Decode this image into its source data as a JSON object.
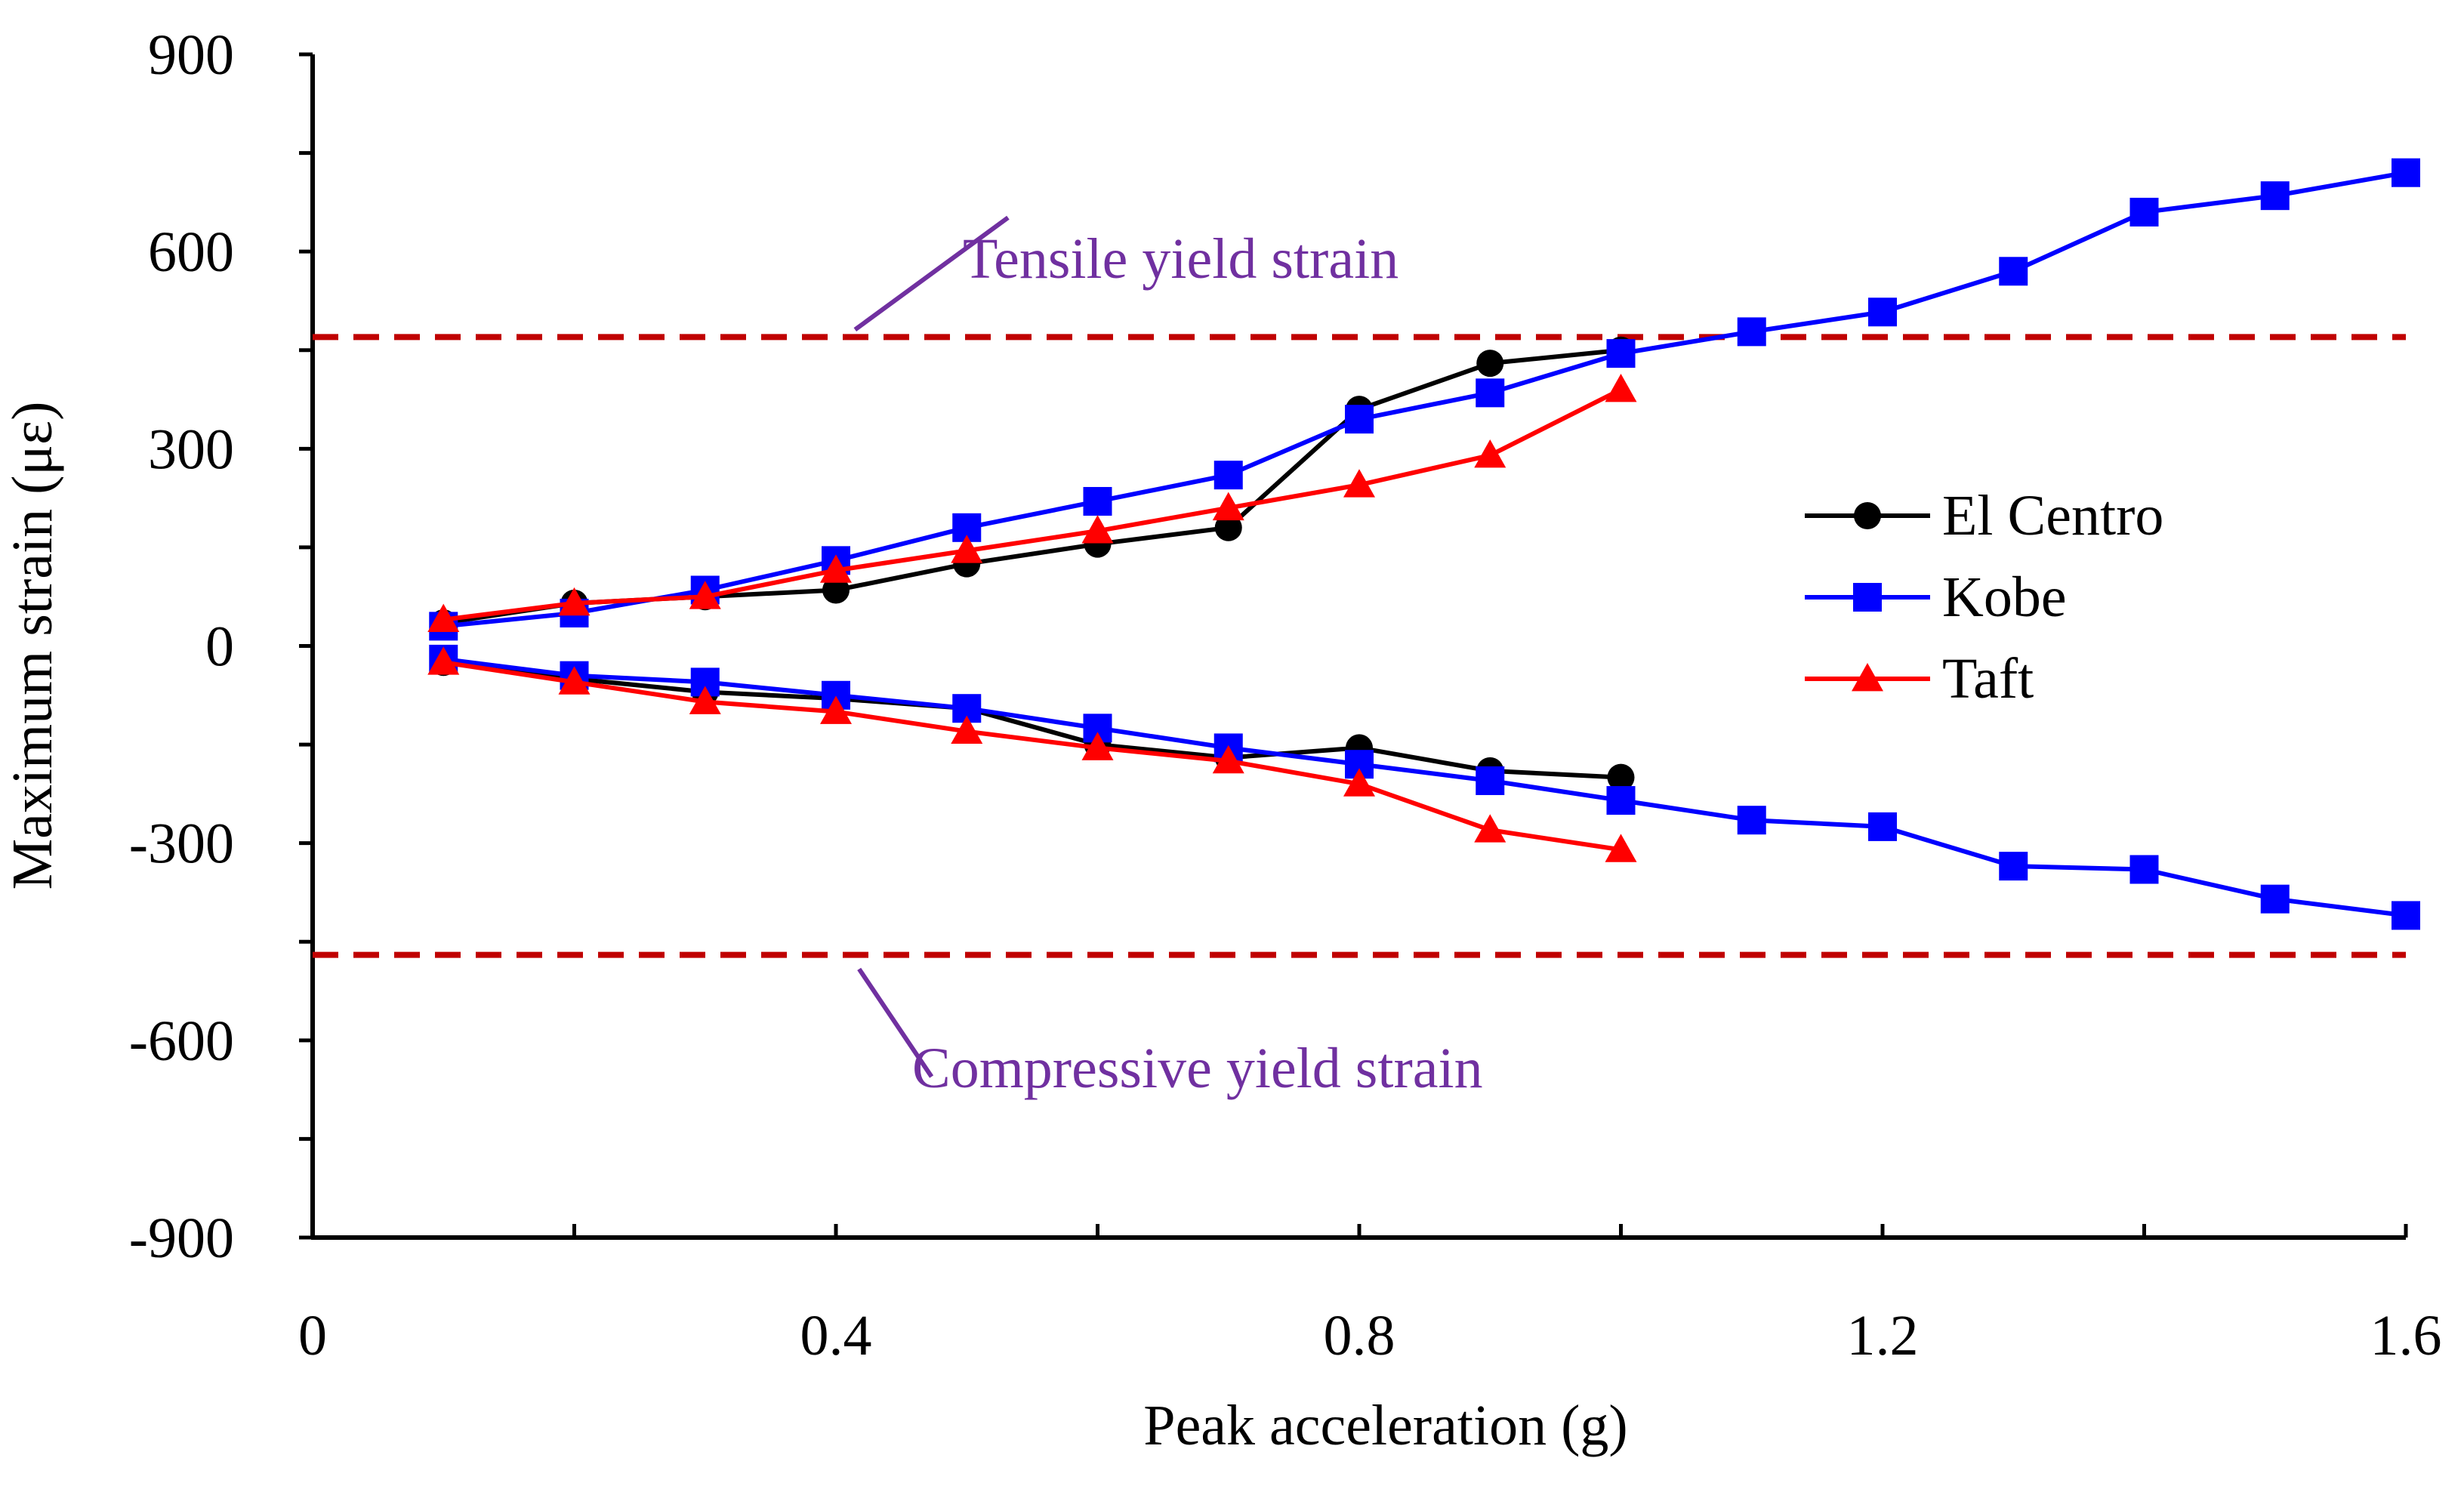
{
  "chart_data": {
    "type": "line",
    "title": "",
    "xlabel": "Peak acceleration (g)",
    "ylabel": "Maximum strain (με)",
    "xlim": [
      0,
      1.6
    ],
    "ylim": [
      -900,
      900
    ],
    "x_ticks": [
      0,
      0.4,
      0.8,
      1.2,
      1.6
    ],
    "x_tick_labels": [
      "0",
      "0.4",
      "0.8",
      "1.2",
      "1.6"
    ],
    "x_minor_step": 0.2,
    "y_ticks": [
      900,
      600,
      300,
      0,
      -300,
      -600,
      -900
    ],
    "y_tick_labels": [
      "900",
      "600",
      "300",
      "0",
      "-300",
      "-600",
      "-900"
    ],
    "y_minor_step": 150,
    "grid": false,
    "legend_position": "right",
    "reference_lines": [
      {
        "name": "Tensile yield strain",
        "y": 470,
        "color": "#c00000",
        "style": "dashed"
      },
      {
        "name": "Compressive yield strain",
        "y": -470,
        "color": "#c00000",
        "style": "dashed"
      }
    ],
    "annotations": [
      {
        "text": "Tensile yield strain",
        "color": "#7030a0",
        "pointer_from": [
          0.49,
          600
        ],
        "pointer_to": [
          0.41,
          472
        ]
      },
      {
        "text": "Compressive yield strain",
        "color": "#7030a0",
        "pointer_from": [
          0.45,
          -630
        ],
        "pointer_to": [
          0.36,
          -480
        ]
      }
    ],
    "series": [
      {
        "name": "El Centro",
        "color": "#000000",
        "marker": "circle",
        "segments": [
          {
            "x": [
              0.1,
              0.2,
              0.3,
              0.4,
              0.5,
              0.6,
              0.7,
              0.8,
              0.9,
              1.0
            ],
            "y": [
              35,
              65,
              75,
              85,
              125,
              155,
              180,
              360,
              430,
              450
            ]
          },
          {
            "x": [
              0.1,
              0.2,
              0.3,
              0.4,
              0.5,
              0.6,
              0.7,
              0.8,
              0.9,
              1.0
            ],
            "y": [
              -25,
              -50,
              -70,
              -80,
              -95,
              -150,
              -170,
              -155,
              -190,
              -200
            ]
          }
        ]
      },
      {
        "name": "Kobe",
        "color": "#0000ff",
        "marker": "square",
        "segments": [
          {
            "x": [
              0.1,
              0.2,
              0.3,
              0.4,
              0.5,
              0.6,
              0.7,
              0.8,
              0.9,
              1.0,
              1.1,
              1.2,
              1.3,
              1.4,
              1.5,
              1.6
            ],
            "y": [
              30,
              50,
              85,
              130,
              180,
              220,
              260,
              345,
              385,
              445,
              478,
              508,
              570,
              660,
              685,
              720
            ]
          },
          {
            "x": [
              0.1,
              0.2,
              0.3,
              0.4,
              0.5,
              0.6,
              0.7,
              0.8,
              0.9,
              1.0,
              1.1,
              1.2,
              1.3,
              1.4,
              1.5,
              1.6
            ],
            "y": [
              -20,
              -45,
              -55,
              -75,
              -95,
              -125,
              -155,
              -180,
              -205,
              -235,
              -265,
              -275,
              -335,
              -340,
              -385,
              -410
            ]
          }
        ]
      },
      {
        "name": "Taft",
        "color": "#ff0000",
        "marker": "triangle",
        "segments": [
          {
            "x": [
              0.1,
              0.2,
              0.3,
              0.4,
              0.5,
              0.6,
              0.7,
              0.8,
              0.9,
              1.0
            ],
            "y": [
              40,
              65,
              75,
              115,
              145,
              175,
              210,
              245,
              290,
              390
            ]
          },
          {
            "x": [
              0.1,
              0.2,
              0.3,
              0.4,
              0.5,
              0.6,
              0.7,
              0.8,
              0.9,
              1.0
            ],
            "y": [
              -25,
              -55,
              -85,
              -100,
              -130,
              -155,
              -175,
              -210,
              -280,
              -310
            ]
          }
        ]
      }
    ]
  }
}
